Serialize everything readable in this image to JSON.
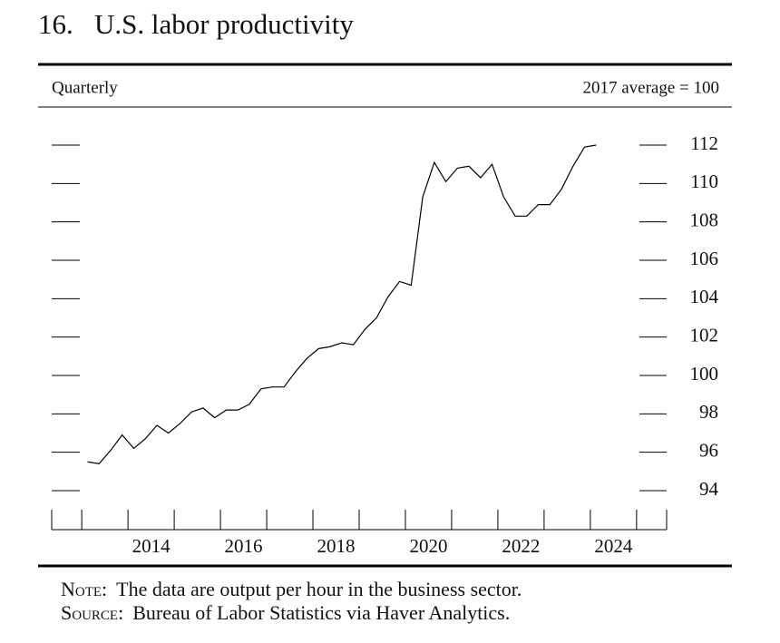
{
  "chart_data": {
    "type": "line",
    "title": "16.   U.S. labor productivity",
    "subtitle_left": "Quarterly",
    "subtitle_right": "2017 average = 100",
    "x": [
      2013.125,
      2013.375,
      2013.625,
      2013.875,
      2014.125,
      2014.375,
      2014.625,
      2014.875,
      2015.125,
      2015.375,
      2015.625,
      2015.875,
      2016.125,
      2016.375,
      2016.625,
      2016.875,
      2017.125,
      2017.375,
      2017.625,
      2017.875,
      2018.125,
      2018.375,
      2018.625,
      2018.875,
      2019.125,
      2019.375,
      2019.625,
      2019.875,
      2020.125,
      2020.375,
      2020.625,
      2020.875,
      2021.125,
      2021.375,
      2021.625,
      2021.875,
      2022.125,
      2022.375,
      2022.625,
      2022.875,
      2023.125,
      2023.375,
      2023.625,
      2023.875,
      2024.125
    ],
    "values": [
      95.5,
      95.4,
      96.1,
      96.9,
      96.2,
      96.7,
      97.4,
      97.0,
      97.5,
      98.1,
      98.3,
      97.8,
      98.2,
      98.2,
      98.5,
      99.3,
      99.4,
      99.4,
      100.2,
      100.9,
      101.4,
      101.5,
      101.7,
      101.6,
      102.4,
      103.0,
      104.1,
      104.9,
      104.7,
      109.3,
      111.1,
      110.1,
      110.8,
      110.9,
      110.3,
      111.0,
      109.3,
      108.3,
      108.3,
      108.9,
      108.9,
      109.7,
      110.9,
      111.9,
      112.0
    ],
    "color": "#000000",
    "xlim": [
      2012.35,
      2025.65
    ],
    "xticks": [
      {
        "value": 2014.5,
        "label": "2014"
      },
      {
        "value": 2016.5,
        "label": "2016"
      },
      {
        "value": 2018.5,
        "label": "2018"
      },
      {
        "value": 2020.5,
        "label": "2020"
      },
      {
        "value": 2022.5,
        "label": "2022"
      },
      {
        "value": 2024.5,
        "label": "2024"
      }
    ],
    "x_boundaries": [
      2013,
      2014,
      2015,
      2016,
      2017,
      2018,
      2019,
      2020,
      2021,
      2022,
      2023,
      2024,
      2025
    ],
    "ylim": [
      94,
      112
    ],
    "yticks": [
      94,
      96,
      98,
      100,
      102,
      104,
      106,
      108,
      110,
      112
    ],
    "note_label": "Note:",
    "note": "The data are output per hour in the business sector.",
    "source_label": "Source:",
    "source": "Bureau of Labor Statistics via Haver Analytics."
  }
}
